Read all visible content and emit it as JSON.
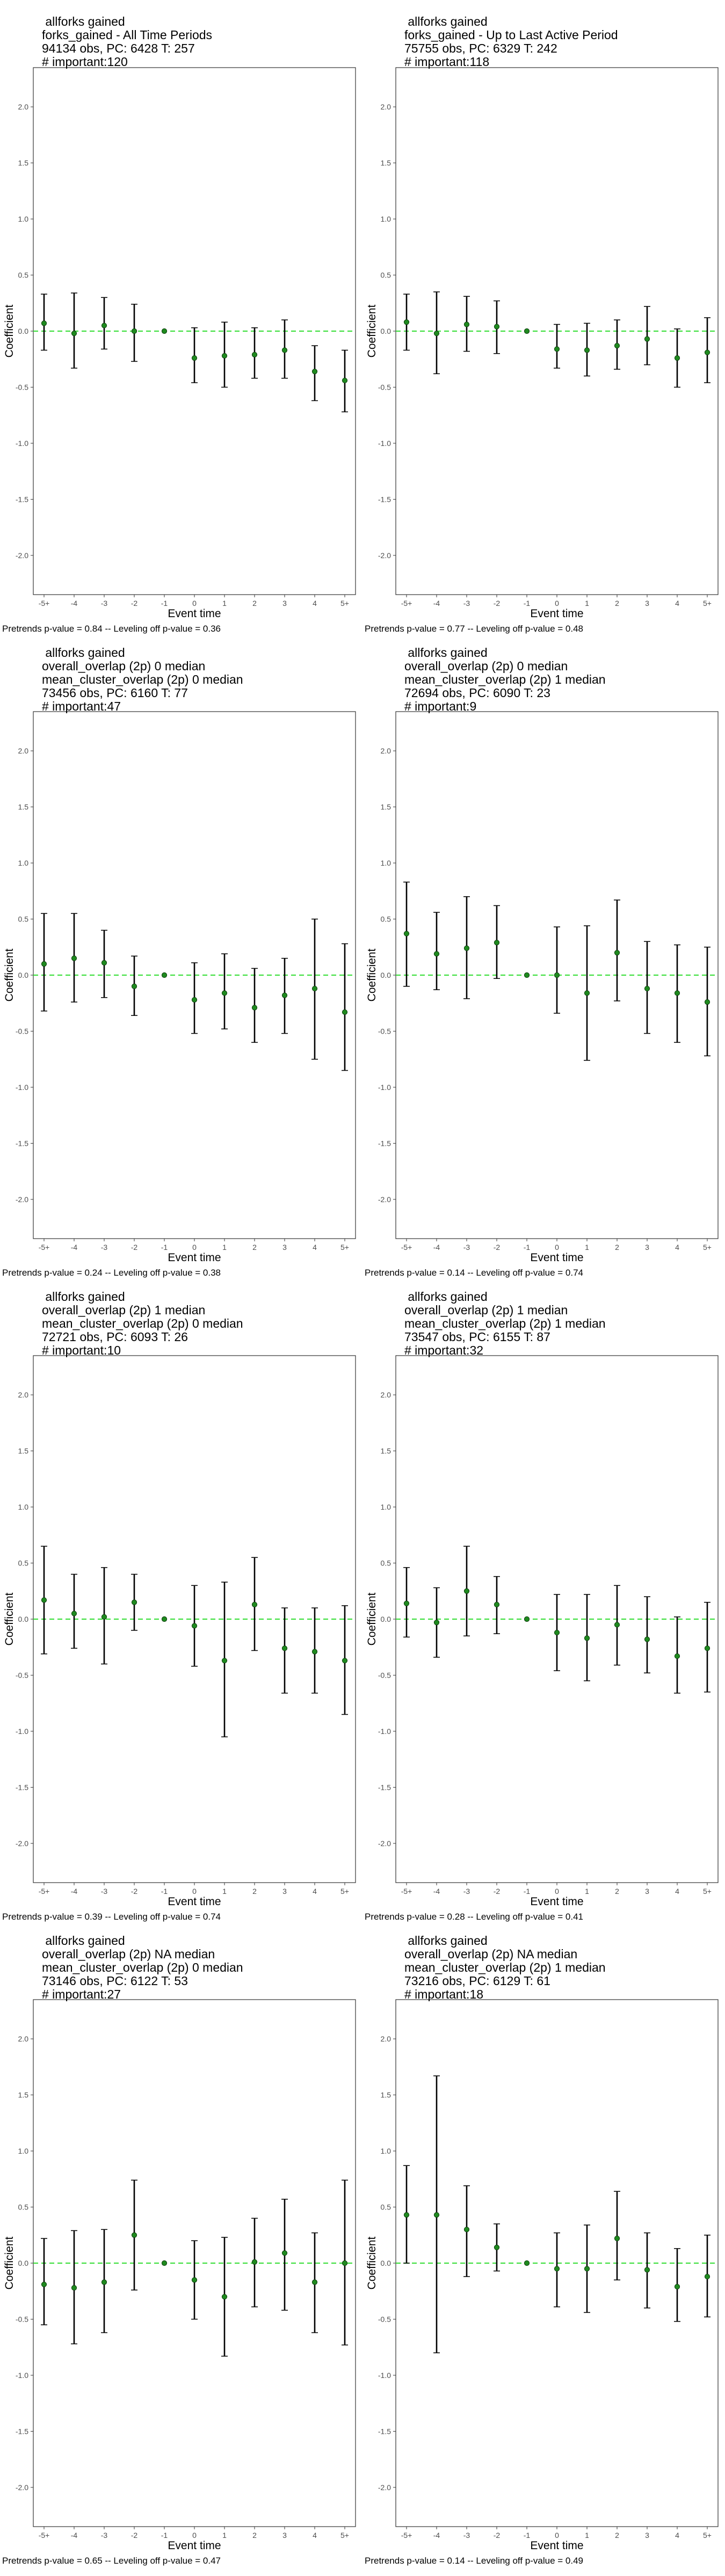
{
  "shared": {
    "xlabel": "Event time",
    "ylabel": "Coefficient",
    "categories": [
      "-5+",
      "-4",
      "-3",
      "-2",
      "-1",
      "0",
      "1",
      "2",
      "3",
      "4",
      "5+"
    ],
    "yticks": [
      "-2.0",
      "-1.5",
      "-1.0",
      "-0.5",
      "0.0",
      "0.5",
      "1.0",
      "1.5",
      "2.0"
    ],
    "ylim": [
      -2.35,
      2.35
    ],
    "point_color": "#1f8a1f",
    "zero_line_color": "#33dd33",
    "errorbar_color": "#000000"
  },
  "chart_data": [
    {
      "type": "scatter",
      "title_lines": [
        " allforks gained",
        "forks_gained - All Time Periods",
        "94134 obs, PC: 6428 T: 257",
        "# important:120"
      ],
      "note": "Pretrends p-value = 0.84 -- Leveling off p-value = 0.36",
      "categories": [
        "-5+",
        "-4",
        "-3",
        "-2",
        "-1",
        "0",
        "1",
        "2",
        "3",
        "4",
        "5+"
      ],
      "values": [
        0.07,
        -0.02,
        0.05,
        0.0,
        0.0,
        -0.24,
        -0.22,
        -0.21,
        -0.17,
        -0.36,
        -0.44
      ],
      "ci_low": [
        -0.17,
        -0.33,
        -0.16,
        -0.27,
        0.0,
        -0.46,
        -0.5,
        -0.42,
        -0.42,
        -0.62,
        -0.72
      ],
      "ci_high": [
        0.33,
        0.34,
        0.3,
        0.24,
        0.0,
        0.03,
        0.08,
        0.03,
        0.1,
        -0.13,
        -0.17
      ],
      "xlabel": "Event time",
      "ylabel": "Coefficient",
      "ylim": [
        -2.35,
        2.35
      ]
    },
    {
      "type": "scatter",
      "title_lines": [
        " allforks gained",
        "forks_gained - Up to Last Active Period",
        "75755 obs, PC: 6329 T: 242",
        "# important:118"
      ],
      "note": "Pretrends p-value = 0.77 -- Leveling off p-value = 0.48",
      "categories": [
        "-5+",
        "-4",
        "-3",
        "-2",
        "-1",
        "0",
        "1",
        "2",
        "3",
        "4",
        "5+"
      ],
      "values": [
        0.08,
        -0.02,
        0.06,
        0.04,
        0.0,
        -0.16,
        -0.17,
        -0.13,
        -0.07,
        -0.24,
        -0.19
      ],
      "ci_low": [
        -0.17,
        -0.38,
        -0.18,
        -0.2,
        0.0,
        -0.33,
        -0.4,
        -0.34,
        -0.3,
        -0.5,
        -0.46
      ],
      "ci_high": [
        0.33,
        0.35,
        0.31,
        0.27,
        0.0,
        0.06,
        0.07,
        0.1,
        0.22,
        0.02,
        0.12
      ],
      "xlabel": "Event time",
      "ylabel": "Coefficient",
      "ylim": [
        -2.35,
        2.35
      ]
    },
    {
      "type": "scatter",
      "title_lines": [
        " allforks gained",
        "overall_overlap (2p) 0 median",
        "mean_cluster_overlap (2p) 0 median",
        "73456 obs, PC: 6160 T: 77",
        "# important:47"
      ],
      "note": "Pretrends p-value = 0.24 -- Leveling off p-value = 0.38",
      "categories": [
        "-5+",
        "-4",
        "-3",
        "-2",
        "-1",
        "0",
        "1",
        "2",
        "3",
        "4",
        "5+"
      ],
      "values": [
        0.1,
        0.15,
        0.11,
        -0.1,
        0.0,
        -0.22,
        -0.16,
        -0.29,
        -0.18,
        -0.12,
        -0.33
      ],
      "ci_low": [
        -0.32,
        -0.24,
        -0.2,
        -0.36,
        0.0,
        -0.52,
        -0.48,
        -0.6,
        -0.52,
        -0.75,
        -0.85
      ],
      "ci_high": [
        0.55,
        0.55,
        0.4,
        0.17,
        0.0,
        0.11,
        0.19,
        0.06,
        0.15,
        0.5,
        0.28
      ],
      "xlabel": "Event time",
      "ylabel": "Coefficient",
      "ylim": [
        -2.35,
        2.35
      ]
    },
    {
      "type": "scatter",
      "title_lines": [
        " allforks gained",
        "overall_overlap (2p) 0 median",
        "mean_cluster_overlap (2p) 1 median",
        "72694 obs, PC: 6090 T: 23",
        "# important:9"
      ],
      "note": "Pretrends p-value = 0.14 -- Leveling off p-value = 0.74",
      "categories": [
        "-5+",
        "-4",
        "-3",
        "-2",
        "-1",
        "0",
        "1",
        "2",
        "3",
        "4",
        "5+"
      ],
      "values": [
        0.37,
        0.19,
        0.24,
        0.29,
        0.0,
        0.0,
        -0.16,
        0.2,
        -0.12,
        -0.16,
        -0.24
      ],
      "ci_low": [
        -0.1,
        -0.13,
        -0.21,
        -0.03,
        0.0,
        -0.34,
        -0.76,
        -0.23,
        -0.52,
        -0.6,
        -0.72
      ],
      "ci_high": [
        0.83,
        0.56,
        0.7,
        0.62,
        0.0,
        0.43,
        0.44,
        0.67,
        0.3,
        0.27,
        0.25
      ],
      "xlabel": "Event time",
      "ylabel": "Coefficient",
      "ylim": [
        -2.35,
        2.35
      ]
    },
    {
      "type": "scatter",
      "title_lines": [
        " allforks gained",
        "overall_overlap (2p) 1 median",
        "mean_cluster_overlap (2p) 0 median",
        "72721 obs, PC: 6093 T: 26",
        "# important:10"
      ],
      "note": "Pretrends p-value = 0.39 -- Leveling off p-value = 0.74",
      "categories": [
        "-5+",
        "-4",
        "-3",
        "-2",
        "-1",
        "0",
        "1",
        "2",
        "3",
        "4",
        "5+"
      ],
      "values": [
        0.17,
        0.05,
        0.02,
        0.15,
        0.0,
        -0.06,
        -0.37,
        0.13,
        -0.26,
        -0.29,
        -0.37
      ],
      "ci_low": [
        -0.31,
        -0.26,
        -0.4,
        -0.1,
        0.0,
        -0.42,
        -1.05,
        -0.28,
        -0.66,
        -0.66,
        -0.85
      ],
      "ci_high": [
        0.65,
        0.4,
        0.46,
        0.4,
        0.0,
        0.3,
        0.33,
        0.55,
        0.1,
        0.1,
        0.12
      ],
      "xlabel": "Event time",
      "ylabel": "Coefficient",
      "ylim": [
        -2.35,
        2.35
      ]
    },
    {
      "type": "scatter",
      "title_lines": [
        " allforks gained",
        "overall_overlap (2p) 1 median",
        "mean_cluster_overlap (2p) 1 median",
        "73547 obs, PC: 6155 T: 87",
        "# important:32"
      ],
      "note": "Pretrends p-value = 0.28 -- Leveling off p-value = 0.41",
      "categories": [
        "-5+",
        "-4",
        "-3",
        "-2",
        "-1",
        "0",
        "1",
        "2",
        "3",
        "4",
        "5+"
      ],
      "values": [
        0.14,
        -0.03,
        0.25,
        0.13,
        0.0,
        -0.12,
        -0.17,
        -0.05,
        -0.18,
        -0.33,
        -0.26
      ],
      "ci_low": [
        -0.16,
        -0.34,
        -0.15,
        -0.13,
        0.0,
        -0.46,
        -0.55,
        -0.41,
        -0.48,
        -0.66,
        -0.65
      ],
      "ci_high": [
        0.46,
        0.28,
        0.65,
        0.38,
        0.0,
        0.22,
        0.22,
        0.3,
        0.2,
        0.02,
        0.15
      ],
      "xlabel": "Event time",
      "ylabel": "Coefficient",
      "ylim": [
        -2.35,
        2.35
      ]
    },
    {
      "type": "scatter",
      "title_lines": [
        " allforks gained",
        "overall_overlap (2p) NA median",
        "mean_cluster_overlap (2p) 0 median",
        "73146 obs, PC: 6122 T: 53",
        "# important:27"
      ],
      "note": "Pretrends p-value = 0.65 -- Leveling off p-value = 0.47",
      "categories": [
        "-5+",
        "-4",
        "-3",
        "-2",
        "-1",
        "0",
        "1",
        "2",
        "3",
        "4",
        "5+"
      ],
      "values": [
        -0.19,
        -0.22,
        -0.17,
        0.25,
        0.0,
        -0.15,
        -0.3,
        0.01,
        0.09,
        -0.17,
        0.0
      ],
      "ci_low": [
        -0.55,
        -0.72,
        -0.62,
        -0.24,
        0.0,
        -0.5,
        -0.83,
        -0.39,
        -0.42,
        -0.62,
        -0.73
      ],
      "ci_high": [
        0.22,
        0.29,
        0.3,
        0.74,
        0.0,
        0.2,
        0.23,
        0.4,
        0.57,
        0.27,
        0.74
      ],
      "xlabel": "Event time",
      "ylabel": "Coefficient",
      "ylim": [
        -2.35,
        2.35
      ]
    },
    {
      "type": "scatter",
      "title_lines": [
        " allforks gained",
        "overall_overlap (2p) NA median",
        "mean_cluster_overlap (2p) 1 median",
        "73216 obs, PC: 6129 T: 61",
        "# important:18"
      ],
      "note": "Pretrends p-value = 0.14 -- Leveling off p-value = 0.49",
      "categories": [
        "-5+",
        "-4",
        "-3",
        "-2",
        "-1",
        "0",
        "1",
        "2",
        "3",
        "4",
        "5+"
      ],
      "values": [
        0.43,
        0.43,
        0.3,
        0.14,
        0.0,
        -0.05,
        -0.05,
        0.22,
        -0.06,
        -0.21,
        -0.12
      ],
      "ci_low": [
        0.0,
        -0.8,
        -0.12,
        -0.07,
        0.0,
        -0.39,
        -0.44,
        -0.15,
        -0.4,
        -0.52,
        -0.48
      ],
      "ci_high": [
        0.87,
        1.67,
        0.69,
        0.35,
        0.0,
        0.27,
        0.34,
        0.64,
        0.27,
        0.13,
        0.25
      ],
      "xlabel": "Event time",
      "ylabel": "Coefficient",
      "ylim": [
        -2.35,
        2.35
      ]
    }
  ]
}
